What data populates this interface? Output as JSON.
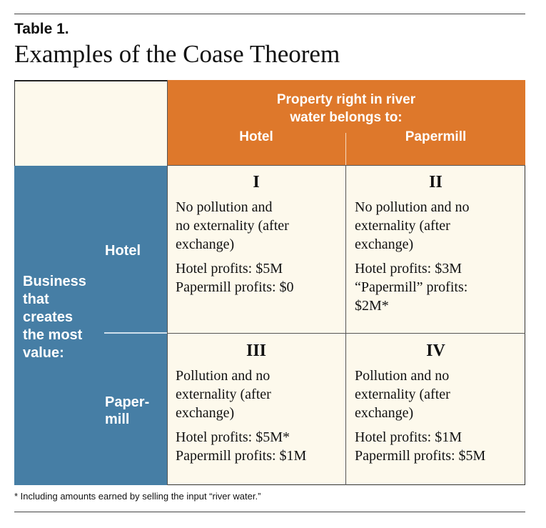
{
  "label": "Table 1.",
  "title": "Examples of the Coase Theorem",
  "header": {
    "title": "Property right in river\nwater belongs to:",
    "col_hotel": "Hotel",
    "col_papermill": "Papermill"
  },
  "side": {
    "label": "Business\nthat\ncreates\nthe most\nvalue:",
    "row_hotel": "Hotel",
    "row_papermill": "Paper-\nmill"
  },
  "cells": [
    {
      "numeral": "I",
      "description": "No pollution and\nno externality (after\nexchange)",
      "profits": "Hotel profits: $5M\nPapermill profits: $0"
    },
    {
      "numeral": "II",
      "description": "No pollution and no\nexternality (after\nexchange)",
      "profits": "Hotel profits: $3M\n“Papermill” profits:\n$2M*"
    },
    {
      "numeral": "III",
      "description": "Pollution and no\nexternality (after\nexchange)",
      "profits": "Hotel profits: $5M*\nPapermill profits: $1M"
    },
    {
      "numeral": "IV",
      "description": "Pollution and no\nexternality (after\nexchange)",
      "profits": "Hotel profits: $1M\nPapermill profits: $5M"
    }
  ],
  "footnote": "* Including amounts earned by selling the input “river water.”"
}
